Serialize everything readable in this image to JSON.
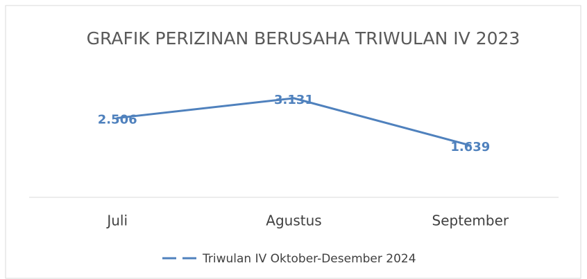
{
  "chart_data": {
    "type": "line",
    "title": "GRAFIK PERIZINAN BERUSAHA TRIWULAN IV 2023",
    "categories": [
      "Juli",
      "Agustus",
      "September"
    ],
    "series": [
      {
        "name": "Triwulan IV Oktober-Desember 2024",
        "color": "#4f81bd",
        "values": [
          2506,
          3131,
          1639
        ],
        "value_labels": [
          "2.506",
          "3.131",
          "1.639"
        ]
      }
    ],
    "ylim": [
      0,
      3500
    ],
    "legend": "bottom"
  }
}
